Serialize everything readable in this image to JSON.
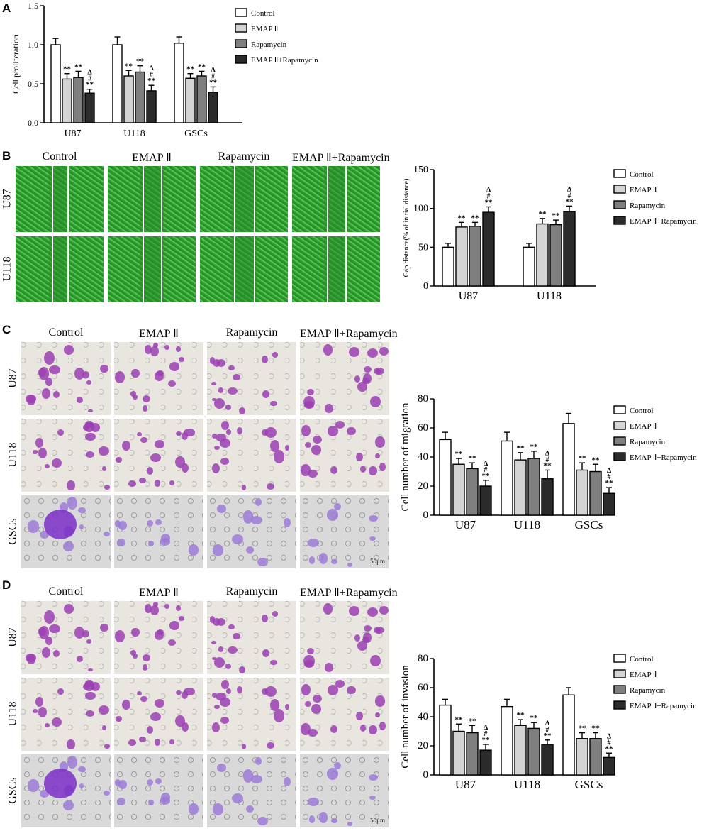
{
  "panels": {
    "A": "A",
    "B": "B",
    "C": "C",
    "D": "D"
  },
  "images": {
    "columns": [
      "Control",
      "EMAP Ⅱ",
      "Rapamycin",
      "EMAP Ⅱ+Rapamycin"
    ],
    "B_rows": [
      "U87",
      "U118"
    ],
    "C_rows": [
      "U87",
      "U118",
      "GSCs"
    ],
    "D_rows": [
      "U87",
      "U118",
      "GSCs"
    ],
    "scale_C": "50μm",
    "scale_D": "50μm"
  },
  "colors": {
    "control": "#ffffff",
    "emap": "#d4d4d4",
    "rapamycin": "#7f7f7f",
    "combo": "#2b2b2b"
  },
  "chart_data": [
    {
      "id": "A",
      "type": "bar",
      "categories": [
        "U87",
        "U118",
        "GSCs"
      ],
      "ylabel": "Cell proliferation",
      "ylim": [
        0,
        1.5
      ],
      "yticks": [
        "0.0",
        "0.5",
        "1.0",
        "1.5"
      ],
      "legend": [
        "Control",
        "EMAP Ⅱ",
        "Rapamycin",
        "EMAP Ⅱ+Rapamycin"
      ],
      "series": [
        {
          "name": "Control",
          "values": [
            1.0,
            1.0,
            1.02
          ],
          "err": [
            0.08,
            0.1,
            0.08
          ]
        },
        {
          "name": "EMAP Ⅱ",
          "values": [
            0.56,
            0.6,
            0.57
          ],
          "err": [
            0.07,
            0.07,
            0.06
          ]
        },
        {
          "name": "Rapamycin",
          "values": [
            0.58,
            0.65,
            0.6
          ],
          "err": [
            0.08,
            0.08,
            0.06
          ]
        },
        {
          "name": "EMAP Ⅱ+Rapamycin",
          "values": [
            0.38,
            0.41,
            0.39
          ],
          "err": [
            0.05,
            0.07,
            0.07
          ]
        }
      ],
      "annotations": [
        [
          "",
          "**",
          "**",
          "∆|#|**"
        ],
        [
          "",
          "**",
          "**",
          "∆|#|**"
        ],
        [
          "",
          "**",
          "**",
          "∆|#|**"
        ]
      ]
    },
    {
      "id": "B",
      "type": "bar",
      "categories": [
        "U87",
        "U118"
      ],
      "ylabel": "Gap distance(% of initial distance)",
      "ylim": [
        0,
        150
      ],
      "yticks": [
        "0",
        "50",
        "100",
        "150"
      ],
      "legend": [
        "Control",
        "EMAP Ⅱ",
        "Rapamycin",
        "EMAP Ⅱ+Rapamycin"
      ],
      "series": [
        {
          "name": "Control",
          "values": [
            50,
            50
          ],
          "err": [
            5,
            5
          ]
        },
        {
          "name": "EMAP Ⅱ",
          "values": [
            76,
            80
          ],
          "err": [
            6,
            7
          ]
        },
        {
          "name": "Rapamycin",
          "values": [
            77,
            79
          ],
          "err": [
            5,
            6
          ]
        },
        {
          "name": "EMAP Ⅱ+Rapamycin",
          "values": [
            95,
            96
          ],
          "err": [
            7,
            7
          ]
        }
      ],
      "annotations": [
        [
          "",
          "**",
          "**",
          "∆|#|**"
        ],
        [
          "",
          "**",
          "**",
          "∆|#|**"
        ]
      ]
    },
    {
      "id": "C",
      "type": "bar",
      "categories": [
        "U87",
        "U118",
        "GSCs"
      ],
      "ylabel": "Cell number of migration",
      "ylim": [
        0,
        80
      ],
      "yticks": [
        "0",
        "20",
        "40",
        "60",
        "80"
      ],
      "legend": [
        "Control",
        "EMAP Ⅱ",
        "Rapamycin",
        "EMAP Ⅱ+Rapamycin"
      ],
      "series": [
        {
          "name": "Control",
          "values": [
            52,
            51,
            63
          ],
          "err": [
            5,
            6,
            7
          ]
        },
        {
          "name": "EMAP Ⅱ",
          "values": [
            35,
            38,
            31
          ],
          "err": [
            4,
            5,
            5
          ]
        },
        {
          "name": "Rapamycin",
          "values": [
            32,
            39,
            30
          ],
          "err": [
            4,
            5,
            5
          ]
        },
        {
          "name": "EMAP Ⅱ+Rapamycin",
          "values": [
            20,
            25,
            15
          ],
          "err": [
            4,
            6,
            4
          ]
        }
      ],
      "annotations": [
        [
          "",
          "**",
          "**",
          "∆|#|**"
        ],
        [
          "",
          "**",
          "**",
          "∆|#|**"
        ],
        [
          "",
          "**",
          "**",
          "∆|#|**"
        ]
      ]
    },
    {
      "id": "D",
      "type": "bar",
      "categories": [
        "U87",
        "U118",
        "GSCs"
      ],
      "ylabel": "Cell number of invasion",
      "ylim": [
        0,
        80
      ],
      "yticks": [
        "0",
        "20",
        "40",
        "60",
        "80"
      ],
      "legend": [
        "Control",
        "EMAP Ⅱ",
        "Rapamycin",
        "EMAP Ⅱ+Rapamycin"
      ],
      "series": [
        {
          "name": "Control",
          "values": [
            48,
            47,
            55
          ],
          "err": [
            4,
            5,
            5
          ]
        },
        {
          "name": "EMAP Ⅱ",
          "values": [
            30,
            34,
            25
          ],
          "err": [
            5,
            4,
            4
          ]
        },
        {
          "name": "Rapamycin",
          "values": [
            29,
            32,
            25
          ],
          "err": [
            5,
            4,
            4
          ]
        },
        {
          "name": "EMAP Ⅱ+Rapamycin",
          "values": [
            17,
            21,
            12
          ],
          "err": [
            4,
            3,
            3
          ]
        }
      ],
      "annotations": [
        [
          "",
          "**",
          "**",
          "∆|#|**"
        ],
        [
          "",
          "**",
          "**",
          "∆|#|**"
        ],
        [
          "",
          "**",
          "**",
          "∆|#|**"
        ]
      ]
    }
  ]
}
